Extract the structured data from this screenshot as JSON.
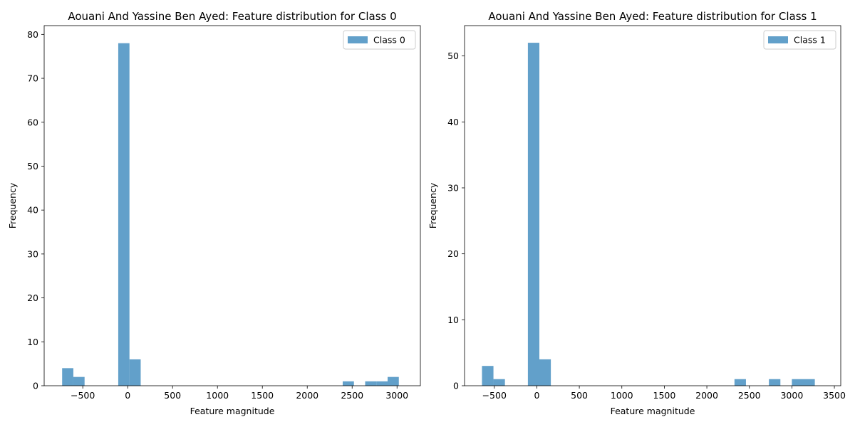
{
  "chart_data": [
    {
      "type": "bar",
      "title": "Aouani And Yassine Ben Ayed: Feature distribution for Class 0",
      "xlabel": "Feature magnitude",
      "ylabel": "Frequency",
      "xlim": [
        -930,
        3260
      ],
      "ylim": [
        0,
        82
      ],
      "xticks": [
        -500,
        0,
        500,
        1000,
        1500,
        2000,
        2500,
        3000
      ],
      "yticks": [
        0,
        10,
        20,
        30,
        40,
        50,
        60,
        70,
        80
      ],
      "legend": {
        "label": "Class 0",
        "position": "top-right"
      },
      "color": "#1f77b4",
      "bin_edges": [
        -730,
        -605,
        -480,
        -355,
        -230,
        -105,
        20,
        145,
        270,
        395,
        520,
        645,
        770,
        895,
        1020,
        1145,
        1270,
        1395,
        1520,
        1645,
        1770,
        1895,
        2020,
        2145,
        2270,
        2395,
        2520,
        2645,
        2770,
        2895,
        3020
      ],
      "counts": [
        4,
        2,
        0,
        0,
        0,
        78,
        6,
        0,
        0,
        0,
        0,
        0,
        0,
        0,
        0,
        0,
        0,
        0,
        0,
        0,
        0,
        0,
        0,
        0,
        0,
        1,
        0,
        1,
        1,
        2
      ]
    },
    {
      "type": "bar",
      "title": "Aouani And Yassine Ben Ayed: Feature distribution for Class 1",
      "xlabel": "Feature magnitude",
      "ylabel": "Frequency",
      "xlim": [
        -850,
        3575
      ],
      "ylim": [
        0,
        54.6
      ],
      "xticks": [
        -500,
        0,
        500,
        1000,
        1500,
        2000,
        2500,
        3000,
        3500
      ],
      "yticks": [
        0,
        10,
        20,
        30,
        40,
        50
      ],
      "legend": {
        "label": "Class 1",
        "position": "top-right"
      },
      "color": "#1f77b4",
      "bin_edges": [
        -645,
        -510,
        -375,
        -240,
        -105,
        30,
        165,
        300,
        435,
        570,
        705,
        840,
        975,
        1110,
        1245,
        1380,
        1515,
        1650,
        1785,
        1920,
        2055,
        2190,
        2325,
        2460,
        2595,
        2730,
        2865,
        3000,
        3135,
        3270,
        3405
      ],
      "counts": [
        3,
        1,
        0,
        0,
        52,
        4,
        0,
        0,
        0,
        0,
        0,
        0,
        0,
        0,
        0,
        0,
        0,
        0,
        0,
        0,
        0,
        0,
        1,
        0,
        0,
        1,
        0,
        1,
        1,
        0
      ]
    }
  ]
}
